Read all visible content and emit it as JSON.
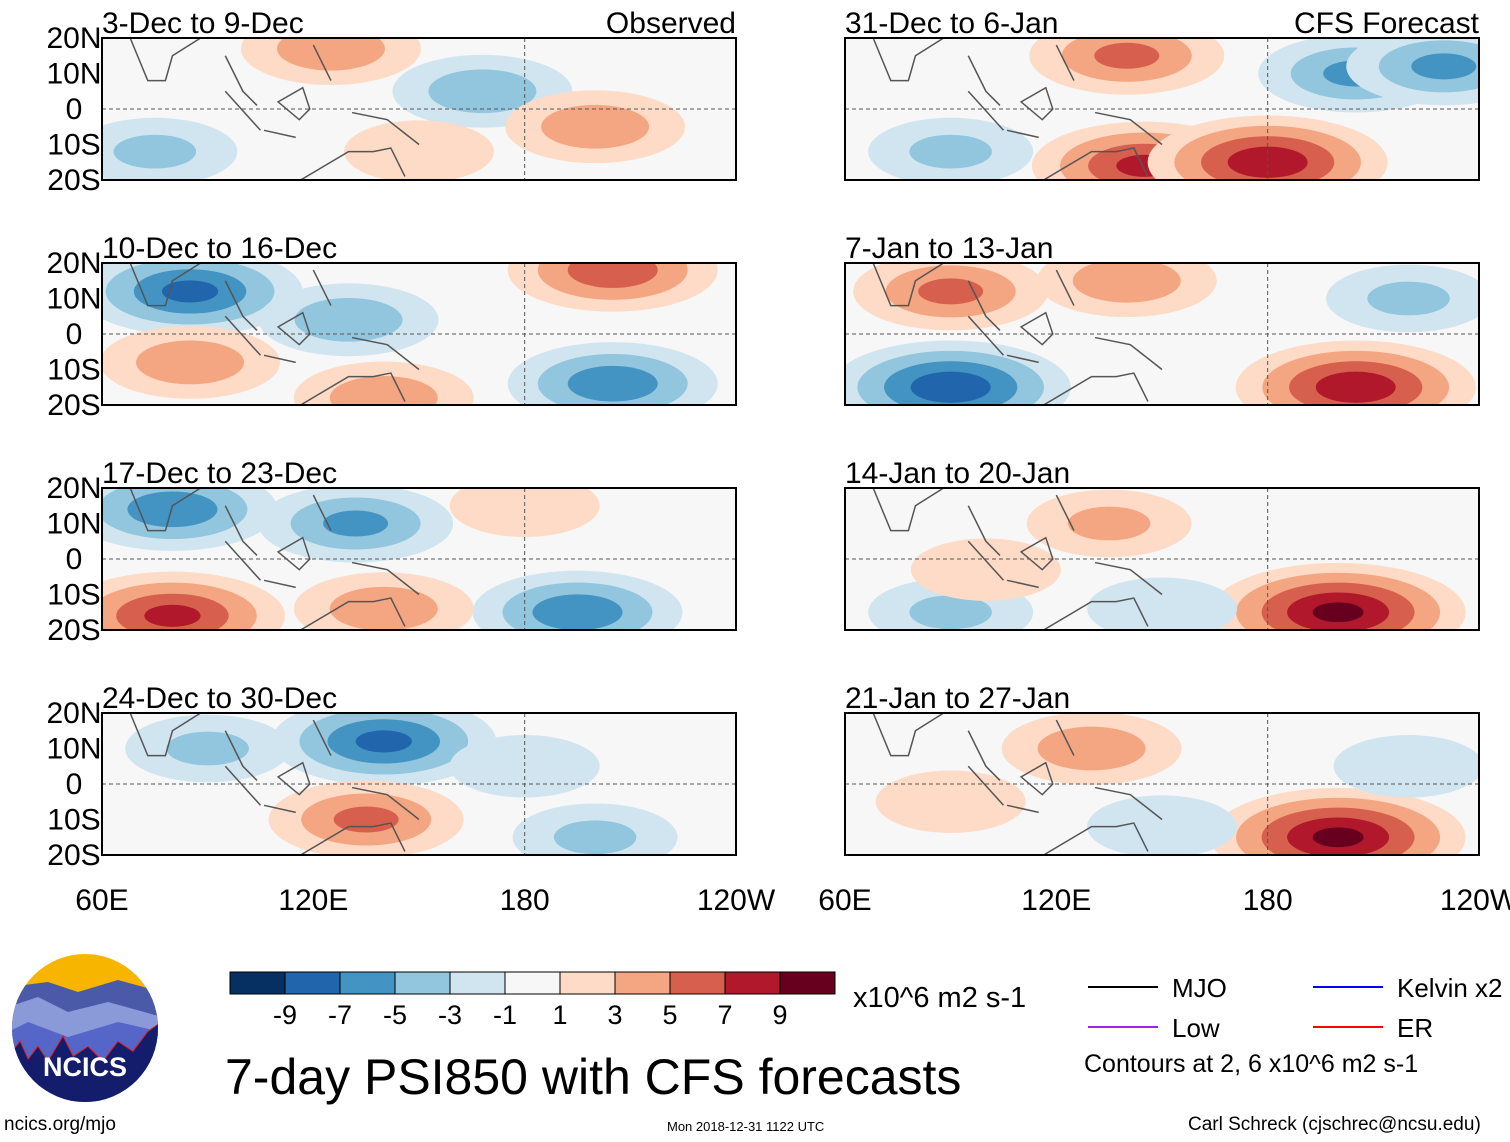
{
  "chart_data": {
    "type": "heatmap",
    "title": "7-day PSI850 with CFS forecasts",
    "units": "x10^6 m2 s-1",
    "xlim": [
      60,
      240
    ],
    "ylim": [
      -20,
      20
    ],
    "x_ticks": [
      "60E",
      "120E",
      "180",
      "120W"
    ],
    "y_ticks": [
      "20N",
      "10N",
      "0",
      "10S",
      "20S"
    ],
    "column_labels": [
      "Observed",
      "CFS Forecast"
    ],
    "colorbar": {
      "labels": [
        "-9",
        "-7",
        "-5",
        "-3",
        "-1",
        "1",
        "3",
        "5",
        "7",
        "9"
      ],
      "colors": [
        "#053061",
        "#2166ac",
        "#4393c3",
        "#92c5de",
        "#d1e5f0",
        "#f7f7f7",
        "#fddbc7",
        "#f4a582",
        "#d6604d",
        "#b2182b",
        "#67001f"
      ]
    },
    "legend": [
      {
        "name": "MJO",
        "color": "#000000"
      },
      {
        "name": "Kelvin x2",
        "color": "#0000ff"
      },
      {
        "name": "Low",
        "color": "#a020f0"
      },
      {
        "name": "ER",
        "color": "#ff0000"
      }
    ],
    "contour_note": "Contours at 2, 6 x10^6 m2 s-1",
    "panels": [
      {
        "title": "3-Dec to 9-Dec",
        "tag": "Observed",
        "anomalies": [
          {
            "lon": 125,
            "lat": 17,
            "v": 4
          },
          {
            "lon": 168,
            "lat": 5,
            "v": -4
          },
          {
            "lon": 200,
            "lat": -5,
            "v": 4
          },
          {
            "lon": 75,
            "lat": -12,
            "v": -3
          },
          {
            "lon": 150,
            "lat": -12,
            "v": 2
          }
        ]
      },
      {
        "title": "10-Dec to 16-Dec",
        "tag": "",
        "anomalies": [
          {
            "lon": 85,
            "lat": 12,
            "v": -7
          },
          {
            "lon": 130,
            "lat": 4,
            "v": -4
          },
          {
            "lon": 205,
            "lat": -14,
            "v": -6
          },
          {
            "lon": 85,
            "lat": -8,
            "v": 4
          },
          {
            "lon": 140,
            "lat": -18,
            "v": 4
          },
          {
            "lon": 205,
            "lat": 18,
            "v": 6
          }
        ]
      },
      {
        "title": "17-Dec to 23-Dec",
        "tag": "",
        "anomalies": [
          {
            "lon": 80,
            "lat": 14,
            "v": -6
          },
          {
            "lon": 132,
            "lat": 10,
            "v": -5
          },
          {
            "lon": 195,
            "lat": -15,
            "v": -6
          },
          {
            "lon": 80,
            "lat": -16,
            "v": 7
          },
          {
            "lon": 140,
            "lat": -14,
            "v": 4
          },
          {
            "lon": 180,
            "lat": 15,
            "v": 2
          }
        ]
      },
      {
        "title": "24-Dec to 30-Dec",
        "tag": "",
        "anomalies": [
          {
            "lon": 140,
            "lat": 12,
            "v": -7
          },
          {
            "lon": 90,
            "lat": 10,
            "v": -3
          },
          {
            "lon": 135,
            "lat": -10,
            "v": 5
          },
          {
            "lon": 200,
            "lat": -15,
            "v": -3
          },
          {
            "lon": 180,
            "lat": 5,
            "v": -2
          }
        ]
      },
      {
        "title": "31-Dec to 6-Jan",
        "tag": "CFS Forecast",
        "anomalies": [
          {
            "lon": 145,
            "lat": -16,
            "v": 7
          },
          {
            "lon": 180,
            "lat": -15,
            "v": 8
          },
          {
            "lon": 205,
            "lat": 10,
            "v": -5
          },
          {
            "lon": 140,
            "lat": 15,
            "v": 5
          },
          {
            "lon": 90,
            "lat": -12,
            "v": -3
          },
          {
            "lon": 230,
            "lat": 12,
            "v": -5
          }
        ]
      },
      {
        "title": "7-Jan to 13-Jan",
        "tag": "",
        "anomalies": [
          {
            "lon": 90,
            "lat": -15,
            "v": -8
          },
          {
            "lon": 205,
            "lat": -15,
            "v": 8
          },
          {
            "lon": 90,
            "lat": 12,
            "v": 5
          },
          {
            "lon": 140,
            "lat": 15,
            "v": 4
          },
          {
            "lon": 220,
            "lat": 10,
            "v": -3
          }
        ]
      },
      {
        "title": "14-Jan to 20-Jan",
        "tag": "",
        "anomalies": [
          {
            "lon": 135,
            "lat": 10,
            "v": 3
          },
          {
            "lon": 200,
            "lat": -15,
            "v": 9
          },
          {
            "lon": 90,
            "lat": -15,
            "v": -3
          },
          {
            "lon": 100,
            "lat": -3,
            "v": 2
          },
          {
            "lon": 150,
            "lat": -14,
            "v": -2
          }
        ]
      },
      {
        "title": "21-Jan to 27-Jan",
        "tag": "",
        "anomalies": [
          {
            "lon": 130,
            "lat": 10,
            "v": 4
          },
          {
            "lon": 200,
            "lat": -15,
            "v": 9
          },
          {
            "lon": 90,
            "lat": -5,
            "v": 2
          },
          {
            "lon": 150,
            "lat": -12,
            "v": -2
          },
          {
            "lon": 220,
            "lat": 5,
            "v": -2
          }
        ]
      }
    ]
  },
  "footer": {
    "logo_text": "NCICS",
    "url": "ncics.org/mjo",
    "timestamp": "Mon 2018-12-31 1122 UTC",
    "author": "Carl Schreck (cjschrec@ncsu.edu)"
  }
}
